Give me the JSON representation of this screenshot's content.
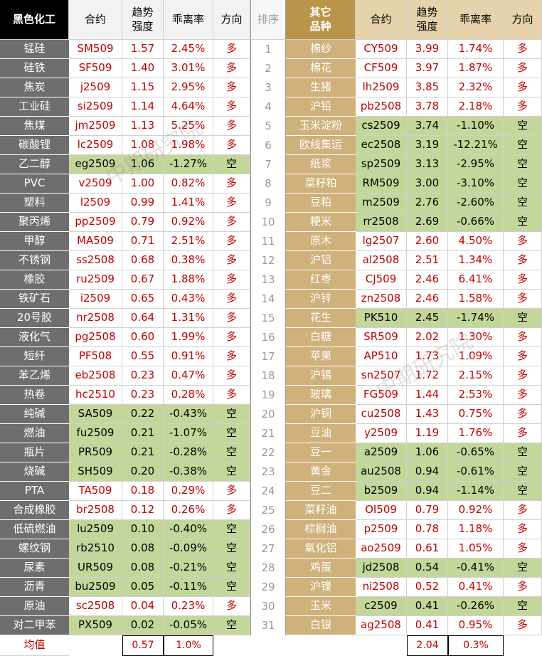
{
  "header": {
    "left": [
      "黑色化工",
      "合约",
      "趋势\n强度",
      "乖离率",
      "方向"
    ],
    "rank": "排序",
    "right": [
      "其它\n品种",
      "合约",
      "趋势\n强度",
      "乖离率",
      "方向"
    ]
  },
  "rows": [
    {
      "rank": "1",
      "left": [
        "锰硅",
        "SM509",
        "1.57",
        "2.45%",
        "多"
      ],
      "right": [
        "棉纱",
        "CY509",
        "3.99",
        "1.74%",
        "多"
      ]
    },
    {
      "rank": "2",
      "left": [
        "硅铁",
        "SF509",
        "1.40",
        "3.01%",
        "多"
      ],
      "right": [
        "棉花",
        "CF509",
        "3.97",
        "1.87%",
        "多"
      ]
    },
    {
      "rank": "3",
      "left": [
        "焦炭",
        "j2509",
        "1.15",
        "2.95%",
        "多"
      ],
      "right": [
        "生猪",
        "lh2509",
        "3.85",
        "2.32%",
        "多"
      ]
    },
    {
      "rank": "4",
      "left": [
        "工业硅",
        "si2509",
        "1.14",
        "4.64%",
        "多"
      ],
      "right": [
        "沪铅",
        "pb2508",
        "3.78",
        "2.18%",
        "多"
      ]
    },
    {
      "rank": "5",
      "left": [
        "焦煤",
        "jm2509",
        "1.13",
        "5.25%",
        "多"
      ],
      "right": [
        "玉米淀粉",
        "cs2509",
        "3.74",
        "-1.10%",
        "空"
      ]
    },
    {
      "rank": "6",
      "left": [
        "碳酸锂",
        "lc2509",
        "1.08",
        "1.98%",
        "多"
      ],
      "right": [
        "欧线集运",
        "ec2508",
        "3.19",
        "-12.21%",
        "空"
      ]
    },
    {
      "rank": "7",
      "left": [
        "乙二醇",
        "eg2509",
        "1.06",
        "-1.27%",
        "空"
      ],
      "right": [
        "纸浆",
        "sp2509",
        "3.13",
        "-2.95%",
        "空"
      ]
    },
    {
      "rank": "8",
      "left": [
        "PVC",
        "v2509",
        "1.00",
        "0.82%",
        "多"
      ],
      "right": [
        "菜籽粕",
        "RM509",
        "3.00",
        "-3.10%",
        "空"
      ]
    },
    {
      "rank": "9",
      "left": [
        "塑料",
        "l2509",
        "0.99",
        "1.41%",
        "多"
      ],
      "right": [
        "豆粕",
        "m2509",
        "2.76",
        "-2.60%",
        "空"
      ]
    },
    {
      "rank": "10",
      "left": [
        "聚丙烯",
        "pp2509",
        "0.79",
        "0.92%",
        "多"
      ],
      "right": [
        "粳米",
        "rr2508",
        "2.69",
        "-0.66%",
        "空"
      ]
    },
    {
      "rank": "11",
      "left": [
        "甲醇",
        "MA509",
        "0.71",
        "2.51%",
        "多"
      ],
      "right": [
        "原木",
        "lg2507",
        "2.60",
        "4.50%",
        "多"
      ]
    },
    {
      "rank": "12",
      "left": [
        "不锈钢",
        "ss2508",
        "0.68",
        "0.38%",
        "多"
      ],
      "right": [
        "沪铝",
        "al2508",
        "2.51",
        "1.34%",
        "多"
      ]
    },
    {
      "rank": "13",
      "left": [
        "橡胶",
        "ru2509",
        "0.67",
        "1.88%",
        "多"
      ],
      "right": [
        "红枣",
        "CJ509",
        "2.46",
        "6.41%",
        "多"
      ]
    },
    {
      "rank": "14",
      "left": [
        "铁矿石",
        "i2509",
        "0.65",
        "0.43%",
        "多"
      ],
      "right": [
        "沪锌",
        "zn2508",
        "2.46",
        "1.58%",
        "多"
      ]
    },
    {
      "rank": "15",
      "left": [
        "20号胶",
        "nr2508",
        "0.64",
        "1.31%",
        "多"
      ],
      "right": [
        "花生",
        "PK510",
        "2.45",
        "-1.74%",
        "空"
      ]
    },
    {
      "rank": "16",
      "left": [
        "液化气",
        "pg2508",
        "0.60",
        "1.99%",
        "多"
      ],
      "right": [
        "白糖",
        "SR509",
        "2.02",
        "1.30%",
        "多"
      ]
    },
    {
      "rank": "17",
      "left": [
        "短纤",
        "PF508",
        "0.55",
        "0.91%",
        "多"
      ],
      "right": [
        "苹果",
        "AP510",
        "1.73",
        "1.09%",
        "多"
      ]
    },
    {
      "rank": "18",
      "left": [
        "苯乙烯",
        "eb2508",
        "0.23",
        "0.47%",
        "多"
      ],
      "right": [
        "沪锡",
        "sn2507",
        "1.72",
        "2.15%",
        "多"
      ]
    },
    {
      "rank": "19",
      "left": [
        "热卷",
        "hc2510",
        "0.23",
        "0.28%",
        "多"
      ],
      "right": [
        "玻璃",
        "FG509",
        "1.44",
        "2.53%",
        "多"
      ]
    },
    {
      "rank": "20",
      "left": [
        "纯碱",
        "SA509",
        "0.22",
        "-0.43%",
        "空"
      ],
      "right": [
        "沪铜",
        "cu2508",
        "1.43",
        "0.75%",
        "多"
      ]
    },
    {
      "rank": "21",
      "left": [
        "燃油",
        "fu2509",
        "0.21",
        "-1.07%",
        "空"
      ],
      "right": [
        "豆油",
        "y2509",
        "1.19",
        "1.76%",
        "多"
      ]
    },
    {
      "rank": "22",
      "left": [
        "瓶片",
        "PR509",
        "0.21",
        "-0.28%",
        "空"
      ],
      "right": [
        "豆一",
        "a2509",
        "1.06",
        "-0.65%",
        "空"
      ]
    },
    {
      "rank": "23",
      "left": [
        "烧碱",
        "SH509",
        "0.20",
        "-0.38%",
        "空"
      ],
      "right": [
        "黄金",
        "au2508",
        "0.94",
        "-0.61%",
        "空"
      ]
    },
    {
      "rank": "24",
      "left": [
        "PTA",
        "TA509",
        "0.18",
        "0.29%",
        "多"
      ],
      "right": [
        "豆二",
        "b2509",
        "0.94",
        "-1.14%",
        "空"
      ]
    },
    {
      "rank": "25",
      "left": [
        "合成橡胶",
        "br2508",
        "0.12",
        "0.26%",
        "多"
      ],
      "right": [
        "菜籽油",
        "OI509",
        "0.79",
        "0.92%",
        "多"
      ]
    },
    {
      "rank": "26",
      "left": [
        "低硫燃油",
        "lu2509",
        "0.10",
        "-0.40%",
        "空"
      ],
      "right": [
        "棕榈油",
        "p2509",
        "0.78",
        "1.18%",
        "多"
      ]
    },
    {
      "rank": "27",
      "left": [
        "螺纹钢",
        "rb2510",
        "0.08",
        "-0.09%",
        "空"
      ],
      "right": [
        "氧化铝",
        "ao2509",
        "0.61",
        "1.05%",
        "多"
      ]
    },
    {
      "rank": "28",
      "left": [
        "尿素",
        "UR509",
        "0.08",
        "-0.21%",
        "空"
      ],
      "right": [
        "鸡蛋",
        "jd2508",
        "0.54",
        "-0.41%",
        "空"
      ]
    },
    {
      "rank": "29",
      "left": [
        "沥青",
        "bu2509",
        "0.05",
        "-0.11%",
        "空"
      ],
      "right": [
        "沪镍",
        "ni2508",
        "0.52",
        "0.41%",
        "多"
      ]
    },
    {
      "rank": "30",
      "left": [
        "原油",
        "sc2508",
        "0.04",
        "0.23%",
        "多"
      ],
      "right": [
        "玉米",
        "c2509",
        "0.41",
        "-0.26%",
        "空"
      ]
    },
    {
      "rank": "31",
      "left": [
        "对二甲苯",
        "PX509",
        "0.02",
        "-0.05%",
        "空"
      ],
      "right": [
        "白银",
        "ag2508",
        "0.41",
        "0.95%",
        "多"
      ]
    }
  ],
  "footer": {
    "label": "均值",
    "left": [
      "0.57",
      "1.0%"
    ],
    "right": [
      "2.04",
      "0.3%"
    ]
  },
  "watermark": "中期研究院"
}
